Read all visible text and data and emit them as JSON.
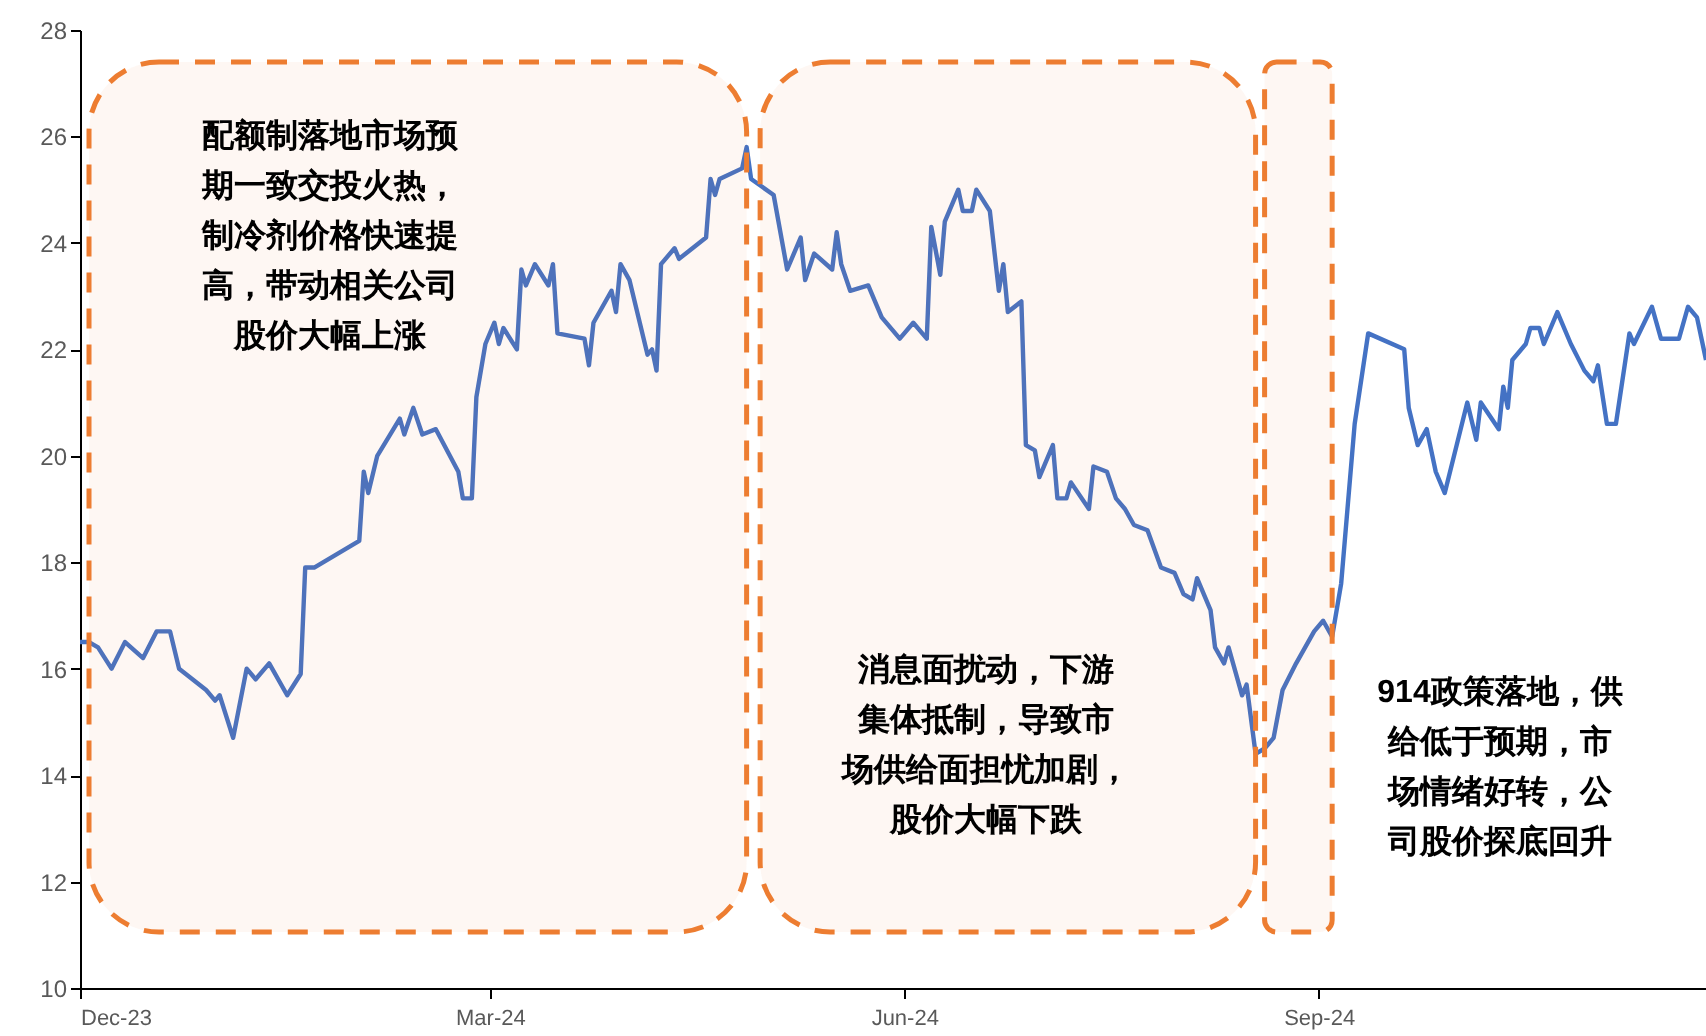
{
  "chart_data": {
    "type": "line",
    "x": [
      "2023-12-01",
      "2023-12-03",
      "2023-12-05",
      "2023-12-08",
      "2023-12-11",
      "2023-12-15",
      "2023-12-18",
      "2023-12-21",
      "2023-12-23",
      "2023-12-29",
      "2023-12-31",
      "2024-01-01",
      "2024-01-04",
      "2024-01-07",
      "2024-01-09",
      "2024-01-12",
      "2024-01-16",
      "2024-01-19",
      "2024-01-20",
      "2024-01-22",
      "2024-02-01",
      "2024-02-02",
      "2024-02-03",
      "2024-02-05",
      "2024-02-10",
      "2024-02-11",
      "2024-02-13",
      "2024-02-15",
      "2024-02-18",
      "2024-02-23",
      "2024-02-24",
      "2024-02-26",
      "2024-02-27",
      "2024-02-29",
      "2024-03-02",
      "2024-03-03",
      "2024-03-04",
      "2024-03-07",
      "2024-03-08",
      "2024-03-09",
      "2024-03-11",
      "2024-03-14",
      "2024-03-15",
      "2024-03-16",
      "2024-03-22",
      "2024-03-23",
      "2024-03-24",
      "2024-03-28",
      "2024-03-29",
      "2024-03-30",
      "2024-04-01",
      "2024-04-05",
      "2024-04-06",
      "2024-04-07",
      "2024-04-08",
      "2024-04-11",
      "2024-04-12",
      "2024-04-18",
      "2024-04-19",
      "2024-04-20",
      "2024-04-21",
      "2024-04-26",
      "2024-04-27",
      "2024-04-28",
      "2024-05-03",
      "2024-05-06",
      "2024-05-09",
      "2024-05-10",
      "2024-05-12",
      "2024-05-16",
      "2024-05-17",
      "2024-05-18",
      "2024-05-20",
      "2024-05-24",
      "2024-05-27",
      "2024-05-31",
      "2024-06-03",
      "2024-06-06",
      "2024-06-07",
      "2024-06-09",
      "2024-06-10",
      "2024-06-13",
      "2024-06-14",
      "2024-06-16",
      "2024-06-17",
      "2024-06-20",
      "2024-06-22",
      "2024-06-23",
      "2024-06-24",
      "2024-06-27",
      "2024-06-28",
      "2024-06-30",
      "2024-07-01",
      "2024-07-04",
      "2024-07-05",
      "2024-07-07",
      "2024-07-08",
      "2024-07-12",
      "2024-07-13",
      "2024-07-16",
      "2024-07-18",
      "2024-07-20",
      "2024-07-22",
      "2024-07-25",
      "2024-07-28",
      "2024-07-31",
      "2024-08-02",
      "2024-08-04",
      "2024-08-05",
      "2024-08-08",
      "2024-08-09",
      "2024-08-11",
      "2024-08-12",
      "2024-08-15",
      "2024-08-16",
      "2024-08-18",
      "2024-08-20",
      "2024-08-22",
      "2024-08-24",
      "2024-08-27",
      "2024-08-31",
      "2024-09-02",
      "2024-09-04",
      "2024-09-06",
      "2024-09-09",
      "2024-09-12",
      "2024-09-20",
      "2024-09-21",
      "2024-09-23",
      "2024-09-25",
      "2024-09-27",
      "2024-09-29",
      "2024-10-04",
      "2024-10-06",
      "2024-10-07",
      "2024-10-11",
      "2024-10-12",
      "2024-10-13",
      "2024-10-14",
      "2024-10-17",
      "2024-10-18",
      "2024-10-20",
      "2024-10-21",
      "2024-10-24",
      "2024-10-27",
      "2024-10-30",
      "2024-11-01",
      "2024-11-02",
      "2024-11-04",
      "2024-11-06",
      "2024-11-09",
      "2024-11-10",
      "2024-11-14",
      "2024-11-16",
      "2024-11-20",
      "2024-11-22",
      "2024-11-24",
      "2024-11-26"
    ],
    "series": [
      {
        "color": "#4472c4",
        "values": [
          16.5,
          16.5,
          16.4,
          16.0,
          16.5,
          16.2,
          16.7,
          16.7,
          16.0,
          15.6,
          15.4,
          15.5,
          14.7,
          16.0,
          15.8,
          16.1,
          15.5,
          15.9,
          17.9,
          17.9,
          18.4,
          19.7,
          19.3,
          20.0,
          20.7,
          20.4,
          20.9,
          20.4,
          20.5,
          19.7,
          19.2,
          19.2,
          21.1,
          22.1,
          22.5,
          22.1,
          22.4,
          22.0,
          23.5,
          23.2,
          23.6,
          23.2,
          23.6,
          22.3,
          22.2,
          21.7,
          22.5,
          23.1,
          22.7,
          23.6,
          23.3,
          21.9,
          22.0,
          21.6,
          23.6,
          23.9,
          23.7,
          24.1,
          25.2,
          24.9,
          25.2,
          25.4,
          25.8,
          25.2,
          24.9,
          23.5,
          24.1,
          23.3,
          23.8,
          23.5,
          24.2,
          23.6,
          23.1,
          23.2,
          22.6,
          22.2,
          22.5,
          22.2,
          24.3,
          23.4,
          24.4,
          25.0,
          24.6,
          24.6,
          25.0,
          24.6,
          23.1,
          23.6,
          22.7,
          22.9,
          20.2,
          20.1,
          19.6,
          20.2,
          19.2,
          19.2,
          19.5,
          19.0,
          19.8,
          19.7,
          19.2,
          19.0,
          18.7,
          18.6,
          17.9,
          17.8,
          17.4,
          17.3,
          17.7,
          17.1,
          16.4,
          16.1,
          16.4,
          15.5,
          15.7,
          14.4,
          14.5,
          14.7,
          15.6,
          16.1,
          16.7,
          16.9,
          16.6,
          17.6,
          20.6,
          22.3,
          22.0,
          20.9,
          20.2,
          20.5,
          19.7,
          19.3,
          21.0,
          20.3,
          21.0,
          20.5,
          21.3,
          20.9,
          21.8,
          22.1,
          22.4,
          22.4,
          22.1,
          22.7,
          22.1,
          21.6,
          21.4,
          21.7,
          20.6,
          20.6,
          22.3,
          22.1,
          22.8,
          22.2,
          22.2,
          22.8,
          22.6,
          21.8
        ]
      }
    ],
    "xlim": [
      "2023-12-01",
      "2024-11-26"
    ],
    "xticks": [
      {
        "value": "2023-12-01",
        "label": "Dec-23"
      },
      {
        "value": "2024-03-01",
        "label": "Mar-24"
      },
      {
        "value": "2024-06-01",
        "label": "Jun-24"
      },
      {
        "value": "2024-09-01",
        "label": "Sep-24"
      }
    ],
    "ylim": [
      10,
      28
    ],
    "yticks": [
      10,
      12,
      14,
      16,
      18,
      20,
      22,
      24,
      26,
      28
    ],
    "bands": [
      {
        "axis": "x",
        "from": "2023-12-03",
        "to": "2024-04-27",
        "color": "#ed7d31"
      },
      {
        "axis": "x",
        "from": "2024-04-30",
        "to": "2024-08-18",
        "color": "#ed7d31"
      },
      {
        "axis": "x",
        "from": "2024-08-20",
        "to": "2024-09-04",
        "color": "#ed7d31"
      }
    ],
    "annotations": [
      "配额制落地市场预期一致交投火热，制冷剂价格快速提高，带动相关公司股价大幅上涨",
      "消息面扰动，下游集体抵制，导致市场供给面担忧加剧，股价大幅下跌",
      "914政策落地，供给低于预期，市场情绪好转，公司股价探底回升"
    ]
  }
}
